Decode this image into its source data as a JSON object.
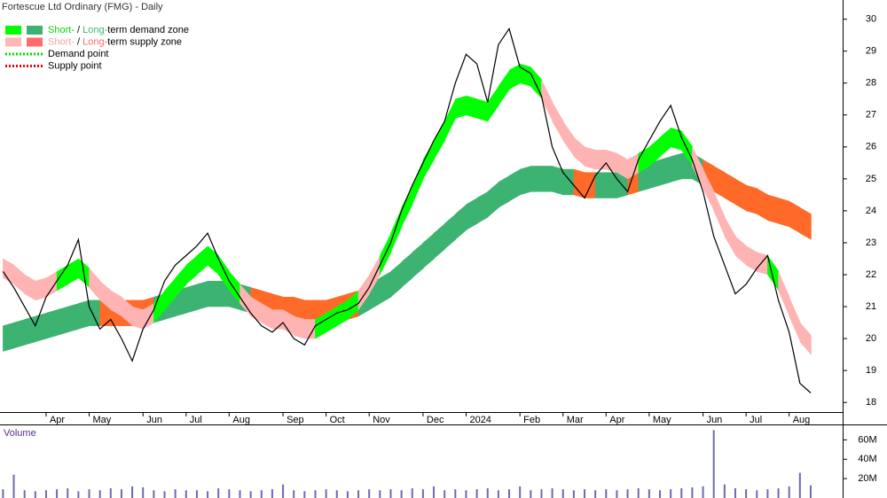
{
  "chart_data": {
    "type": "line",
    "title": "Fortescue Ltd Ordinary (FMG) - Daily",
    "categories": [
      null,
      null,
      null,
      null,
      "Apr",
      null,
      null,
      null,
      "May",
      null,
      null,
      null,
      null,
      "Jun",
      null,
      null,
      null,
      "Jul",
      null,
      null,
      null,
      "Aug",
      null,
      null,
      null,
      null,
      "Sep",
      null,
      null,
      null,
      "Oct",
      null,
      null,
      null,
      "Nov",
      null,
      null,
      null,
      null,
      "Dec",
      null,
      null,
      null,
      "2024",
      null,
      null,
      null,
      null,
      "Feb",
      null,
      null,
      null,
      "Mar",
      null,
      null,
      null,
      "Apr",
      null,
      null,
      null,
      "May",
      null,
      null,
      null,
      null,
      "Jun",
      null,
      null,
      null,
      "Jul",
      null,
      null,
      null,
      "Aug",
      null,
      null,
      null,
      null
    ],
    "values": [
      22.1,
      21.6,
      21.0,
      20.4,
      21.3,
      21.8,
      22.3,
      23.1,
      21.0,
      20.3,
      20.6,
      20.0,
      19.3,
      20.3,
      20.9,
      21.8,
      22.3,
      22.6,
      22.9,
      23.3,
      22.5,
      21.8,
      21.3,
      20.8,
      20.4,
      20.2,
      20.5,
      20.0,
      19.8,
      20.4,
      20.6,
      20.8,
      20.9,
      21.1,
      21.6,
      22.3,
      23.0,
      24.0,
      24.8,
      25.5,
      26.2,
      26.8,
      28.0,
      28.9,
      28.6,
      27.4,
      29.2,
      29.7,
      28.5,
      28.3,
      27.6,
      26.0,
      25.2,
      24.8,
      24.4,
      25.1,
      25.5,
      25.0,
      24.6,
      25.6,
      26.2,
      26.8,
      27.3,
      26.3,
      25.6,
      24.6,
      23.2,
      22.3,
      21.4,
      21.7,
      22.2,
      22.6,
      21.2,
      20.2,
      18.6,
      18.3,
      null,
      null
    ],
    "color": "#000000",
    "short_term_zone": {
      "upper": [
        22.5,
        22.3,
        22.0,
        21.8,
        21.9,
        22.1,
        22.3,
        22.5,
        22.2,
        21.8,
        21.5,
        21.3,
        21.0,
        20.9,
        21.1,
        21.5,
        21.9,
        22.3,
        22.6,
        22.9,
        22.6,
        22.1,
        21.7,
        21.3,
        21.1,
        20.9,
        20.9,
        20.7,
        20.6,
        20.6,
        20.8,
        21.0,
        21.2,
        21.5,
        22.0,
        22.6,
        23.3,
        24.1,
        24.8,
        25.6,
        26.2,
        26.8,
        27.5,
        27.6,
        27.5,
        27.4,
        27.9,
        28.4,
        28.6,
        28.5,
        28.1,
        27.4,
        26.8,
        26.3,
        26.0,
        25.9,
        25.9,
        25.8,
        25.6,
        25.8,
        26.0,
        26.3,
        26.6,
        26.5,
        26.0,
        25.3,
        24.6,
        23.8,
        23.2,
        22.9,
        22.7,
        22.6,
        22.1,
        21.3,
        20.5,
        20.1,
        null,
        null
      ],
      "lower": [
        21.9,
        21.7,
        21.4,
        21.2,
        21.3,
        21.5,
        21.7,
        21.9,
        21.6,
        21.2,
        20.9,
        20.7,
        20.4,
        20.3,
        20.5,
        20.9,
        21.3,
        21.7,
        22.0,
        22.3,
        22.0,
        21.5,
        21.1,
        20.7,
        20.5,
        20.3,
        20.3,
        20.1,
        20.0,
        20.0,
        20.2,
        20.4,
        20.6,
        20.9,
        21.4,
        22.0,
        22.7,
        23.5,
        24.2,
        25.0,
        25.6,
        26.2,
        26.9,
        27.0,
        26.9,
        26.8,
        27.3,
        27.8,
        28.0,
        27.9,
        27.5,
        26.8,
        26.2,
        25.7,
        25.4,
        25.3,
        25.3,
        25.2,
        25.0,
        25.2,
        25.4,
        25.7,
        26.0,
        25.9,
        25.4,
        24.7,
        24.0,
        23.2,
        22.6,
        22.3,
        22.1,
        22.0,
        21.5,
        20.7,
        19.9,
        19.5,
        null,
        null
      ]
    },
    "long_term_zone": {
      "upper": [
        20.4,
        20.5,
        20.6,
        20.7,
        20.8,
        20.9,
        21.0,
        21.1,
        21.2,
        21.2,
        21.2,
        21.2,
        21.2,
        21.2,
        21.3,
        21.4,
        21.5,
        21.6,
        21.7,
        21.8,
        21.8,
        21.8,
        21.7,
        21.6,
        21.5,
        21.4,
        21.3,
        21.3,
        21.2,
        21.2,
        21.2,
        21.3,
        21.4,
        21.5,
        21.7,
        21.9,
        22.1,
        22.4,
        22.7,
        23.0,
        23.3,
        23.6,
        23.9,
        24.2,
        24.4,
        24.6,
        24.9,
        25.1,
        25.3,
        25.4,
        25.4,
        25.4,
        25.3,
        25.3,
        25.2,
        25.2,
        25.2,
        25.2,
        25.3,
        25.4,
        25.5,
        25.6,
        25.7,
        25.8,
        25.8,
        25.6,
        25.4,
        25.2,
        25.0,
        24.8,
        24.7,
        24.5,
        24.4,
        24.3,
        24.1,
        23.9,
        null,
        null
      ],
      "lower": [
        19.6,
        19.7,
        19.8,
        19.9,
        20.0,
        20.1,
        20.2,
        20.3,
        20.4,
        20.4,
        20.4,
        20.4,
        20.4,
        20.4,
        20.5,
        20.6,
        20.7,
        20.8,
        20.9,
        21.0,
        21.0,
        21.0,
        20.9,
        20.8,
        20.7,
        20.6,
        20.5,
        20.5,
        20.4,
        20.4,
        20.4,
        20.5,
        20.6,
        20.7,
        20.9,
        21.1,
        21.3,
        21.6,
        21.9,
        22.2,
        22.5,
        22.8,
        23.1,
        23.4,
        23.6,
        23.8,
        24.1,
        24.3,
        24.5,
        24.6,
        24.6,
        24.6,
        24.5,
        24.5,
        24.4,
        24.4,
        24.4,
        24.4,
        24.5,
        24.6,
        24.7,
        24.8,
        24.9,
        25.0,
        25.0,
        24.8,
        24.6,
        24.4,
        24.2,
        24.0,
        23.9,
        23.7,
        23.6,
        23.5,
        23.3,
        23.1,
        null,
        null
      ]
    },
    "zone_colors": {
      "short_demand": "#00ff00",
      "short_supply": "#ffb3b3",
      "long_demand": "#3cb371",
      "long_supply": "#ff6a28"
    },
    "ylim": [
      17.7,
      30.6
    ],
    "yticks": [
      18,
      19,
      20,
      21,
      22,
      23,
      24,
      25,
      26,
      27,
      28,
      29,
      30
    ],
    "legend": [
      {
        "swatches": [
          "#00ff00",
          "#3cb371"
        ],
        "parts": [
          {
            "text": "Short-",
            "color": "#00dd00"
          },
          {
            "text": " / ",
            "color": "#000000"
          },
          {
            "text": "Long-",
            "color": "#3cb371"
          },
          {
            "text": "term demand zone",
            "color": "#000000"
          }
        ]
      },
      {
        "swatches": [
          "#ffb6b6",
          "#ff6b6b"
        ],
        "parts": [
          {
            "text": "Short-",
            "color": "#ffa0a0"
          },
          {
            "text": " / ",
            "color": "#000000"
          },
          {
            "text": "Long-",
            "color": "#ff6b6b"
          },
          {
            "text": "term supply zone",
            "color": "#000000"
          }
        ]
      },
      {
        "dotted": "#00dd00",
        "parts": [
          {
            "text": "Demand point",
            "color": "#000000"
          }
        ]
      },
      {
        "dotted": "#ee0000",
        "parts": [
          {
            "text": "Supply point",
            "color": "#000000"
          }
        ]
      }
    ],
    "volume": {
      "title": "Volume",
      "color": "#6b6bb0",
      "values": [
        9,
        24,
        8,
        7,
        8,
        9,
        10,
        7,
        9,
        8,
        10,
        9,
        12,
        11,
        8,
        7,
        9,
        8,
        8,
        7,
        10,
        9,
        8,
        7,
        8,
        9,
        14,
        8,
        7,
        8,
        9,
        8,
        7,
        8,
        9,
        8,
        9,
        8,
        10,
        9,
        12,
        8,
        9,
        8,
        9,
        10,
        8,
        9,
        12,
        8,
        9,
        10,
        9,
        8,
        9,
        8,
        9,
        8,
        9,
        10,
        9,
        8,
        9,
        10,
        11,
        12,
        70,
        14,
        10,
        9,
        8,
        9,
        10,
        12,
        26,
        13,
        null,
        null
      ],
      "ylim": [
        0,
        75
      ],
      "yticks": [
        {
          "value": 20,
          "label": "20M"
        },
        {
          "value": 40,
          "label": "40M"
        },
        {
          "value": 60,
          "label": "60M"
        }
      ]
    }
  }
}
